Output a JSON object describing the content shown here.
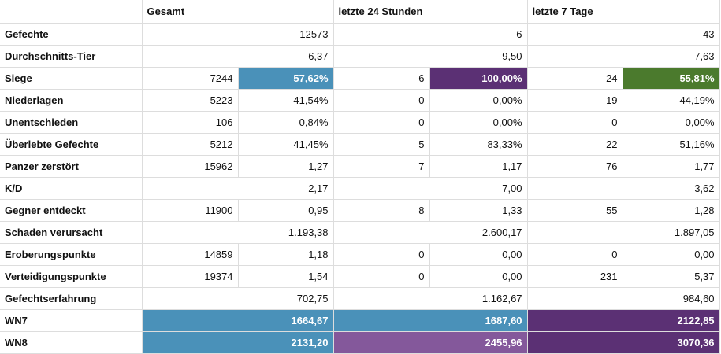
{
  "headers": [
    "",
    "Gesamt",
    "letzte 24 Stunden",
    "letzte 7 Tage"
  ],
  "colors": {
    "blue": "#4a91b9",
    "dark_purple": "#5b3074",
    "green": "#4b7a2d",
    "light_purple": "#84589b"
  },
  "rows": [
    {
      "label": "Gefechte",
      "cells": [
        {
          "value": "12573"
        },
        {
          "value": "6"
        },
        {
          "value": "43"
        }
      ]
    },
    {
      "label": "Durchschnitts-Tier",
      "cells": [
        {
          "value": "6,37"
        },
        {
          "value": "9,50"
        },
        {
          "value": "7,63"
        }
      ]
    },
    {
      "label": "Siege",
      "cells": [
        {
          "count": "7244",
          "pct": "57,62%",
          "color": "#4a91b9"
        },
        {
          "count": "6",
          "pct": "100,00%",
          "color": "#5b3074"
        },
        {
          "count": "24",
          "pct": "55,81%",
          "color": "#4b7a2d"
        }
      ]
    },
    {
      "label": "Niederlagen",
      "cells": [
        {
          "count": "5223",
          "pct": "41,54%"
        },
        {
          "count": "0",
          "pct": "0,00%"
        },
        {
          "count": "19",
          "pct": "44,19%"
        }
      ]
    },
    {
      "label": "Unentschieden",
      "cells": [
        {
          "count": "106",
          "pct": "0,84%"
        },
        {
          "count": "0",
          "pct": "0,00%"
        },
        {
          "count": "0",
          "pct": "0,00%"
        }
      ]
    },
    {
      "label": "Überlebte Gefechte",
      "cells": [
        {
          "count": "5212",
          "pct": "41,45%"
        },
        {
          "count": "5",
          "pct": "83,33%"
        },
        {
          "count": "22",
          "pct": "51,16%"
        }
      ]
    },
    {
      "label": "Panzer zerstört",
      "cells": [
        {
          "count": "15962",
          "pct": "1,27"
        },
        {
          "count": "7",
          "pct": "1,17"
        },
        {
          "count": "76",
          "pct": "1,77"
        }
      ]
    },
    {
      "label": "K/D",
      "cells": [
        {
          "value": "2,17"
        },
        {
          "value": "7,00"
        },
        {
          "value": "3,62"
        }
      ]
    },
    {
      "label": "Gegner entdeckt",
      "cells": [
        {
          "count": "11900",
          "pct": "0,95"
        },
        {
          "count": "8",
          "pct": "1,33"
        },
        {
          "count": "55",
          "pct": "1,28"
        }
      ]
    },
    {
      "label": "Schaden verursacht",
      "cells": [
        {
          "value": "1.193,38"
        },
        {
          "value": "2.600,17"
        },
        {
          "value": "1.897,05"
        }
      ]
    },
    {
      "label": "Eroberungspunkte",
      "cells": [
        {
          "count": "14859",
          "pct": "1,18"
        },
        {
          "count": "0",
          "pct": "0,00"
        },
        {
          "count": "0",
          "pct": "0,00"
        }
      ]
    },
    {
      "label": "Verteidigungspunkte",
      "cells": [
        {
          "count": "19374",
          "pct": "1,54"
        },
        {
          "count": "0",
          "pct": "0,00"
        },
        {
          "count": "231",
          "pct": "5,37"
        }
      ]
    },
    {
      "label": "Gefechtserfahrung",
      "cells": [
        {
          "value": "702,75"
        },
        {
          "value": "1.162,67"
        },
        {
          "value": "984,60"
        }
      ]
    },
    {
      "label": "WN7",
      "cells": [
        {
          "value": "1664,67",
          "color": "#4a91b9"
        },
        {
          "value": "1687,60",
          "color": "#4a91b9"
        },
        {
          "value": "2122,85",
          "color": "#5b3074"
        }
      ]
    },
    {
      "label": "WN8",
      "cells": [
        {
          "value": "2131,20",
          "color": "#4a91b9"
        },
        {
          "value": "2455,96",
          "color": "#84589b"
        },
        {
          "value": "3070,36",
          "color": "#5b3074"
        }
      ]
    }
  ]
}
